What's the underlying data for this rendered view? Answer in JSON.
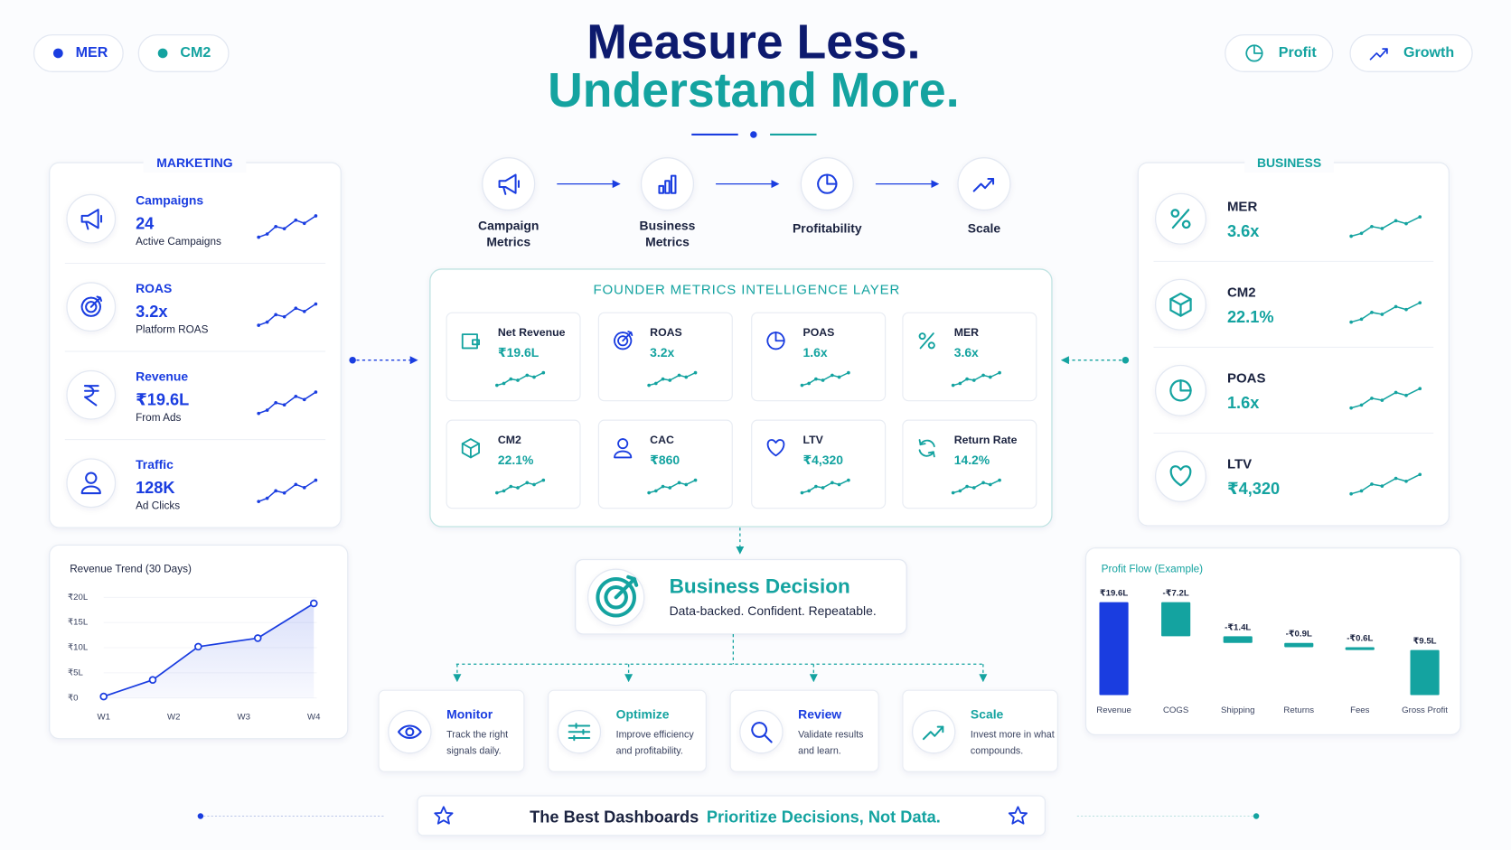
{
  "header": {
    "title": [
      "Measure Less.",
      "Understand More."
    ],
    "left_pills": [
      "MER",
      "CM2"
    ],
    "right_pills": [
      "Profit",
      "Growth"
    ]
  },
  "marketing": {
    "title": "MARKETING",
    "items": [
      {
        "label": "Campaigns",
        "value": "24",
        "note": "Active Campaigns"
      },
      {
        "label": "ROAS",
        "value": "3.2x",
        "note": "Platform ROAS"
      },
      {
        "label": "Revenue",
        "value": "₹19.6L",
        "note": "From Ads"
      },
      {
        "label": "Traffic",
        "value": "128K",
        "note": "Ad Clicks"
      }
    ]
  },
  "flow": {
    "steps": [
      {
        "label": [
          "Campaign",
          "Metrics"
        ]
      },
      {
        "label": [
          "Business",
          "Metrics"
        ]
      },
      {
        "label": [
          "Profitability"
        ]
      },
      {
        "label": [
          "Scale"
        ]
      }
    ]
  },
  "layer": {
    "title": "FOUNDER METRICS INTELLIGENCE LAYER",
    "cards": [
      {
        "label": "Net Revenue",
        "value": "₹19.6L"
      },
      {
        "label": "ROAS",
        "value": "3.2x"
      },
      {
        "label": "POAS",
        "value": "1.6x"
      },
      {
        "label": "MER",
        "value": "3.6x"
      },
      {
        "label": "CM2",
        "value": "22.1%"
      },
      {
        "label": "CAC",
        "value": "₹860"
      },
      {
        "label": "LTV",
        "value": "₹4,320"
      },
      {
        "label": "Return Rate",
        "value": "14.2%"
      }
    ]
  },
  "business": {
    "title": "BUSINESS",
    "items": [
      {
        "label": "MER",
        "value": "3.6x"
      },
      {
        "label": "CM2",
        "value": "22.1%"
      },
      {
        "label": "POAS",
        "value": "1.6x"
      },
      {
        "label": "LTV",
        "value": "₹4,320"
      }
    ]
  },
  "decision": {
    "title": "Business Decision",
    "subtitle": "Data-backed. Confident. Repeatable."
  },
  "actions": [
    {
      "title": "Monitor",
      "text": [
        "Track the right",
        "signals daily."
      ]
    },
    {
      "title": "Optimize",
      "text": [
        "Improve efficiency",
        "and profitability."
      ]
    },
    {
      "title": "Review",
      "text": [
        "Validate results",
        "and learn."
      ]
    },
    {
      "title": "Scale",
      "text": [
        "Invest more in what",
        "compounds."
      ]
    }
  ],
  "footer": {
    "lead": "The Best Dashboards",
    "accent": "Prioritize Decisions, Not Data."
  },
  "chart_data": [
    {
      "type": "line",
      "title": "Revenue Trend (30 Days)",
      "x": [
        1,
        1.7,
        2.35,
        3.2,
        4
      ],
      "values": [
        0.3,
        3.6,
        10.2,
        11.9,
        18.8
      ],
      "color": "#1a3de0",
      "area": true,
      "xlim": [
        1,
        4
      ],
      "xticks": [
        {
          "value": 1,
          "label": "W1"
        },
        {
          "value": 2,
          "label": "W2"
        },
        {
          "value": 3,
          "label": "W3"
        },
        {
          "value": 4,
          "label": "W4"
        }
      ],
      "ylim": [
        0,
        20
      ],
      "yticks": [
        {
          "value": 0,
          "label": "₹0"
        },
        {
          "value": 5,
          "label": "₹5L"
        },
        {
          "value": 10,
          "label": "₹10L"
        },
        {
          "value": 15,
          "label": "₹15L"
        },
        {
          "value": 20,
          "label": "₹20L"
        }
      ],
      "grid": true
    },
    {
      "type": "waterfall",
      "title": "Profit Flow (Example)",
      "categories": [
        "Revenue",
        "COGS",
        "Shipping",
        "Returns",
        "Fees",
        "Gross Profit"
      ],
      "values": [
        19.6,
        -7.2,
        -1.4,
        -0.9,
        -0.6,
        9.5
      ],
      "value_labels": [
        "₹19.6L",
        "-₹7.2L",
        "-₹1.4L",
        "-₹0.9L",
        "-₹0.6L",
        "₹9.5L"
      ],
      "measure": [
        "absolute",
        "relative",
        "relative",
        "relative",
        "relative",
        "total"
      ],
      "colors": [
        "#1a3de0",
        "#14a3a0",
        "#14a3a0",
        "#14a3a0",
        "#14a3a0",
        "#14a3a0"
      ]
    }
  ]
}
